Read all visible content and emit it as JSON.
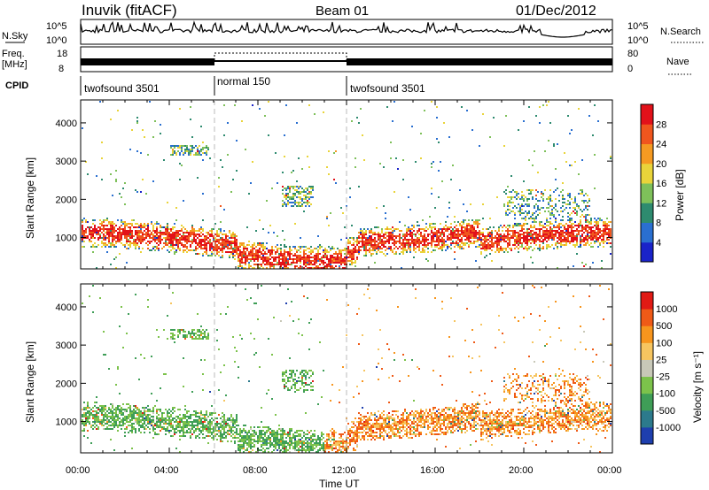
{
  "header": {
    "site": "Inuvik (fitACF)",
    "beam": "Beam 01",
    "date": "01/Dec/2012"
  },
  "aux_panels": {
    "nsky_label": "N.Sky",
    "nsky_ticks": [
      "10^5",
      "10^0"
    ],
    "nsearch_label": "N.Search",
    "nsearch_ticks": [
      "10^5",
      "10^0"
    ],
    "freq_label": [
      "Freq.",
      "[MHz]"
    ],
    "freq_ticks": [
      "18",
      "8"
    ],
    "nave_label": "Nave",
    "nave_ticks": [
      "80",
      "0"
    ],
    "cpid_label": "CPID",
    "cpid_segments": [
      {
        "name": "twofsound 3501",
        "start": 0,
        "end": 6
      },
      {
        "name": "normal 150",
        "start": 6,
        "end": 12
      },
      {
        "name": "twofsound 3501",
        "start": 12,
        "end": 24
      }
    ]
  },
  "chart_data": [
    {
      "type": "heatmap",
      "title": "Power",
      "xlabel": "Time UT",
      "ylabel": "Slant Range [km]",
      "x_range_hours": [
        0,
        24
      ],
      "ylim": [
        180,
        4600
      ],
      "y_ticks": [
        1000,
        2000,
        3000,
        4000
      ],
      "colorbar": {
        "label": "Power [dB]",
        "ticks": [
          4,
          8,
          12,
          16,
          20,
          24,
          28
        ],
        "range": [
          0,
          30
        ],
        "colors": [
          "#1a23c9",
          "#2a6fd0",
          "#2e8b6f",
          "#7ec05a",
          "#e9d43a",
          "#f59a22",
          "#f0561e",
          "#e2111a"
        ]
      },
      "bands": [
        {
          "range_km": [
            500,
            1300
          ],
          "hours": [
            0,
            6
          ],
          "level": "high"
        },
        {
          "range_km": [
            500,
            900
          ],
          "hours": [
            6,
            12
          ],
          "level": "medium"
        },
        {
          "range_km": [
            500,
            1600
          ],
          "hours": [
            12,
            24
          ],
          "level": "high"
        }
      ]
    },
    {
      "type": "heatmap",
      "title": "Velocity",
      "xlabel": "Time UT",
      "ylabel": "Slant Range [km]",
      "x_range_hours": [
        0,
        24
      ],
      "ylim": [
        180,
        4600
      ],
      "y_ticks": [
        1000,
        2000,
        3000,
        4000
      ],
      "colorbar": {
        "label": "Velocity [m s⁻¹]",
        "ticks": [
          "1000",
          "500",
          "100",
          "25",
          "-25",
          "-100",
          "-500",
          "-1000"
        ],
        "colors": [
          "#1e3fae",
          "#2c7a8c",
          "#3f9e57",
          "#7cc24b",
          "#c8c8b8",
          "#f6c560",
          "#f7951d",
          "#ef5a17",
          "#e11a14"
        ]
      }
    }
  ],
  "time_axis": {
    "ticks": [
      "00:00",
      "04:00",
      "08:00",
      "12:00",
      "16:00",
      "20:00",
      "00:00"
    ],
    "label": "Time UT"
  }
}
